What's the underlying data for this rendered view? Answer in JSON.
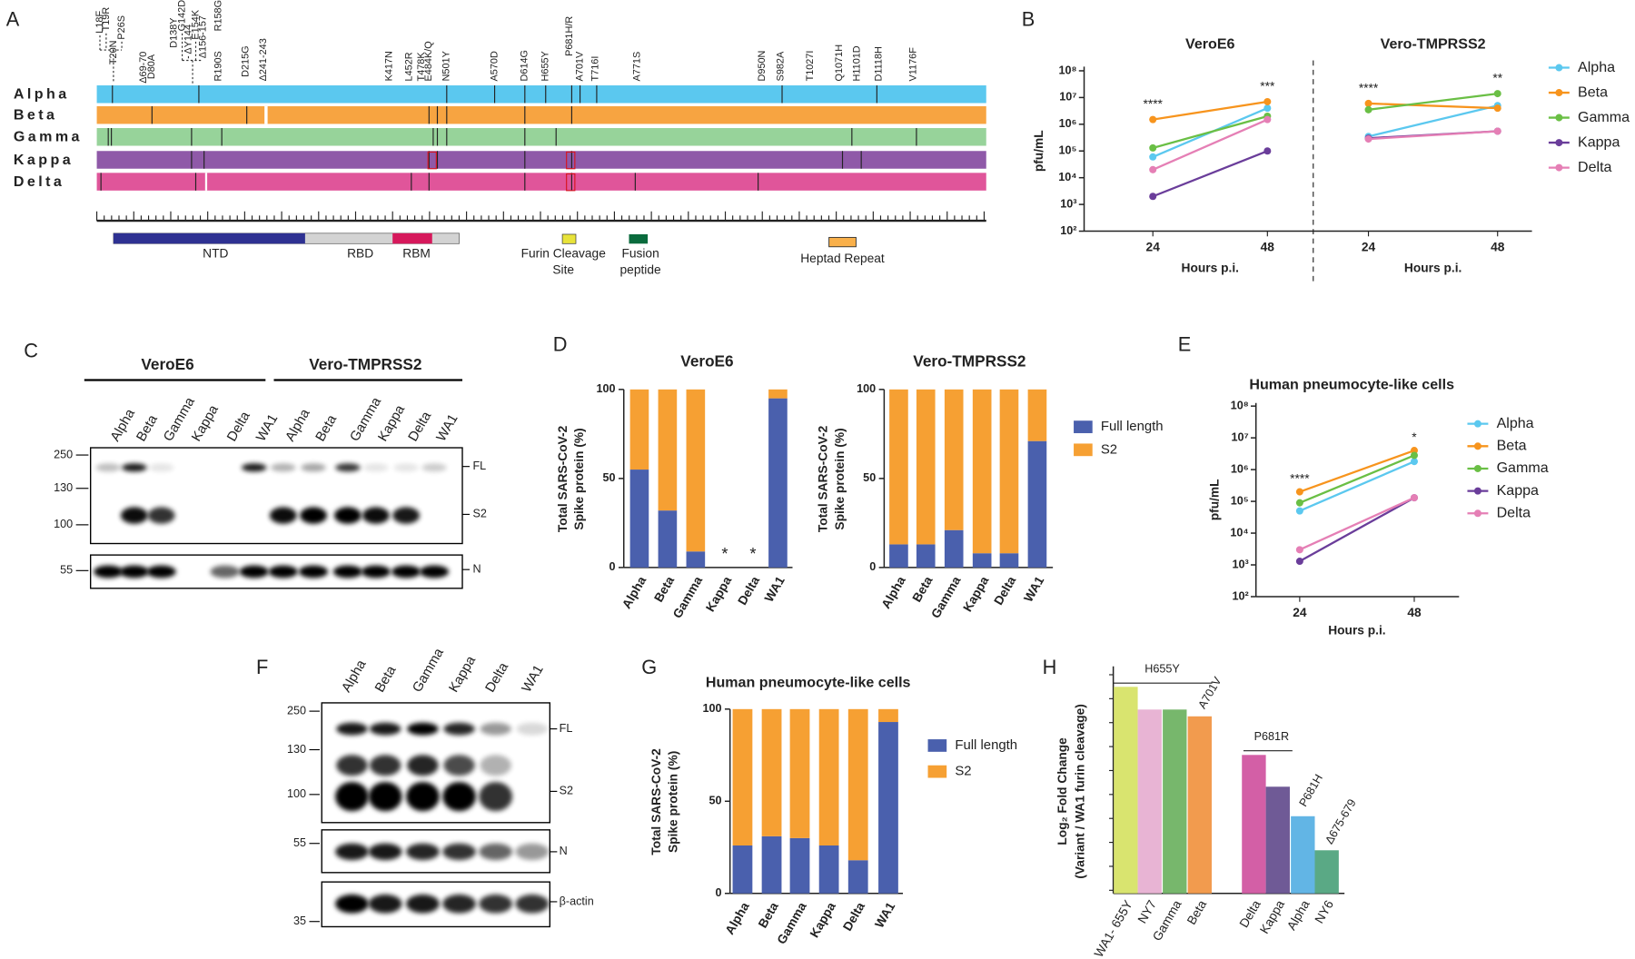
{
  "panel_labels": [
    "A",
    "B",
    "C",
    "D",
    "E",
    "F",
    "G",
    "H"
  ],
  "panel_a": {
    "variants": [
      "Alpha",
      "Beta",
      "Gamma",
      "Kappa",
      "Delta"
    ],
    "mutations": [
      {
        "text": "L18F"
      },
      {
        "text": "T19R"
      },
      {
        "text": "T20N"
      },
      {
        "text": "P26S"
      },
      {
        "text": "Δ69-70",
        "color": "#8a8a8a"
      },
      {
        "text": "D80A"
      },
      {
        "text": "D138Y"
      },
      {
        "text": "G142D"
      },
      {
        "text": "ΔY144",
        "color": "#8a8a8a"
      },
      {
        "text": "E154K"
      },
      {
        "text": "Δ156-157",
        "color": "#8a8a8a"
      },
      {
        "text": "R158G"
      },
      {
        "text": "R190S"
      },
      {
        "text": "D215G"
      },
      {
        "text": "Δ241-243",
        "color": "#8a8a8a"
      },
      {
        "text": "K417N"
      },
      {
        "text": "L452R"
      },
      {
        "text": "T478K"
      },
      {
        "text": "E484K/Q"
      },
      {
        "text": "N501Y"
      },
      {
        "text": "A570D"
      },
      {
        "text": "D614G"
      },
      {
        "text": "H655Y"
      },
      {
        "text": "P681H/R"
      },
      {
        "text": "A701V"
      },
      {
        "text": "T716I"
      },
      {
        "text": "A771S"
      },
      {
        "text": "D950N"
      },
      {
        "text": "S982A"
      },
      {
        "text": "T1027I"
      },
      {
        "text": "Q1071H"
      },
      {
        "text": "H1101D"
      },
      {
        "text": "D1118H"
      },
      {
        "text": "V1176F"
      }
    ],
    "domains": {
      "ntd": "NTD",
      "rbd": "RBD",
      "rbm": "RBM",
      "furin": [
        "Furin Cleavage",
        "Site"
      ],
      "fusion": [
        "Fusion",
        "peptide"
      ],
      "heptad": "Heptad Repeat"
    }
  },
  "blots": {
    "c": {
      "groups": [
        "VeroE6",
        "Vero-TMPRSS2"
      ],
      "lanes": [
        "Alpha",
        "Beta",
        "Gamma",
        "Kappa",
        "Delta",
        "WA1",
        "Alpha",
        "Beta",
        "Gamma",
        "Kappa",
        "Delta",
        "WA1"
      ],
      "markers": [
        "250",
        "130",
        "100",
        "55"
      ],
      "bands": [
        "FL",
        "S2",
        "N"
      ]
    },
    "f": {
      "lanes": [
        "Alpha",
        "Beta",
        "Gamma",
        "Kappa",
        "Delta",
        "WA1"
      ],
      "markers": [
        "250",
        "130",
        "100",
        "55",
        "35"
      ],
      "bands": [
        "FL",
        "S2",
        "N",
        "β-actin"
      ]
    }
  },
  "chart_data": [
    {
      "type": "line-panels",
      "log_y": true,
      "y_label": "pfu/mL",
      "ylim": [
        100,
        100000000
      ],
      "yticks": [
        {
          "value": 100,
          "label": "10²"
        },
        {
          "value": 1000,
          "label": "10³"
        },
        {
          "value": 10000,
          "label": "10⁴"
        },
        {
          "value": 100000,
          "label": "10⁵"
        },
        {
          "value": 1000000,
          "label": "10⁶"
        },
        {
          "value": 10000000,
          "label": "10⁷"
        },
        {
          "value": 100000000,
          "label": "10⁸"
        }
      ],
      "legend": [
        {
          "name": "Alpha",
          "color": "#5bc8ef"
        },
        {
          "name": "Beta",
          "color": "#f7941d"
        },
        {
          "name": "Gamma",
          "color": "#6abf45"
        },
        {
          "name": "Kappa",
          "color": "#6a3d9a"
        },
        {
          "name": "Delta",
          "color": "#e57fb5"
        }
      ],
      "subplots": [
        {
          "title": "VeroE6",
          "x_label": "Hours p.i.",
          "categories": [
            "24",
            "48"
          ],
          "annotations": [
            "****",
            "***"
          ],
          "series": [
            {
              "values": [
                60000,
                4000000
              ]
            },
            {
              "values": [
                1500000,
                7000000
              ]
            },
            {
              "values": [
                130000,
                2000000
              ]
            },
            {
              "values": [
                2000,
                100000
              ]
            },
            {
              "values": [
                20000,
                1500000
              ]
            }
          ]
        },
        {
          "title": "Vero-TMPRSS2",
          "x_label": "Hours p.i.",
          "categories": [
            "24",
            "48"
          ],
          "annotations": [
            "****",
            "**"
          ],
          "series": [
            {
              "values": [
                350000,
                5000000
              ]
            },
            {
              "values": [
                6000000,
                4000000
              ]
            },
            {
              "values": [
                3500000,
                14000000
              ]
            },
            {
              "values": [
                300000,
                550000
              ]
            },
            {
              "values": [
                280000,
                550000
              ]
            }
          ]
        }
      ]
    },
    {
      "type": "stacked-bar-panels",
      "legend": [
        {
          "name": "Full length",
          "color": "#4a60ad"
        },
        {
          "name": "S2",
          "color": "#f6a033"
        }
      ],
      "subplots": [
        {
          "title": "VeroE6",
          "y_label": [
            "Total SARS-CoV-2",
            "Spike protein (%)"
          ],
          "ylim": [
            0,
            100
          ],
          "yticks": [
            0,
            50,
            100
          ],
          "categories": [
            "Alpha",
            "Beta",
            "Gamma",
            "Kappa",
            "Delta",
            "WA1"
          ],
          "annotations": [
            "*",
            "*"
          ],
          "series": [
            {
              "values": [
                55,
                32,
                9,
                null,
                null,
                95
              ]
            },
            {
              "values": [
                45,
                68,
                91,
                null,
                null,
                5
              ]
            }
          ]
        },
        {
          "title": "Vero-TMPRSS2",
          "y_label": [
            "Total SARS-CoV-2",
            "Spike protein (%)"
          ],
          "ylim": [
            0,
            100
          ],
          "yticks": [
            0,
            50,
            100
          ],
          "categories": [
            "Alpha",
            "Beta",
            "Gamma",
            "Kappa",
            "Delta",
            "WA1"
          ],
          "series": [
            {
              "values": [
                13,
                13,
                21,
                8,
                8,
                71
              ]
            },
            {
              "values": [
                87,
                87,
                79,
                92,
                92,
                29
              ]
            }
          ]
        }
      ]
    },
    {
      "type": "line",
      "log_y": true,
      "title": "Human pneumocyte-like cells",
      "y_label": "pfu/mL",
      "x_label": "Hours p.i.",
      "categories": [
        "24",
        "48"
      ],
      "annotations": [
        "****",
        "*"
      ],
      "ylim": [
        100,
        100000000
      ],
      "yticks": [
        {
          "value": 100,
          "label": "10²"
        },
        {
          "value": 1000,
          "label": "10³"
        },
        {
          "value": 10000,
          "label": "10⁴"
        },
        {
          "value": 100000,
          "label": "10⁵"
        },
        {
          "value": 1000000,
          "label": "10⁶"
        },
        {
          "value": 10000000,
          "label": "10⁷"
        },
        {
          "value": 100000000,
          "label": "10⁸"
        }
      ],
      "series": [
        {
          "name": "Alpha",
          "color": "#5bc8ef",
          "values": [
            50000,
            1800000
          ]
        },
        {
          "name": "Beta",
          "color": "#f7941d",
          "values": [
            200000,
            4000000
          ]
        },
        {
          "name": "Gamma",
          "color": "#6abf45",
          "values": [
            90000,
            2800000
          ]
        },
        {
          "name": "Kappa",
          "color": "#6a3d9a",
          "values": [
            1300,
            130000
          ]
        },
        {
          "name": "Delta",
          "color": "#e57fb5",
          "values": [
            3000,
            130000
          ]
        }
      ]
    },
    {
      "type": "stacked-bar",
      "title": "Human pneumocyte-like cells",
      "y_label": [
        "Total SARS-CoV-2",
        "Spike protein (%)"
      ],
      "ylim": [
        0,
        100
      ],
      "yticks": [
        0,
        50,
        100
      ],
      "categories": [
        "Alpha",
        "Beta",
        "Gamma",
        "Kappa",
        "Delta",
        "WA1"
      ],
      "series": [
        {
          "name": "Full length",
          "color": "#4a60ad",
          "values": [
            26,
            31,
            30,
            26,
            18,
            93
          ]
        },
        {
          "name": "S2",
          "color": "#f6a033",
          "values": [
            74,
            69,
            70,
            74,
            82,
            7
          ]
        }
      ]
    },
    {
      "type": "bar",
      "y_label": [
        "Log₂ Fold Change",
        "(Variant / WA1 furin cleavage)"
      ],
      "ylim": [
        0,
        1
      ],
      "categories": [
        "WA1- 655Y",
        "NY7",
        "Gamma",
        "Beta",
        "Delta",
        "Kappa",
        "Alpha",
        "NY6"
      ],
      "values": [
        0.91,
        0.81,
        0.81,
        0.78,
        0.61,
        0.47,
        0.34,
        0.19
      ],
      "colors": [
        "#d9e46f",
        "#e8b4d4",
        "#77b76c",
        "#f29b4e",
        "#d35fa6",
        "#6f5a96",
        "#62b5e5",
        "#5aa985"
      ],
      "annotations": [
        "H655Y",
        "A701V",
        "P681R",
        "P681H",
        "Δ675-679"
      ]
    }
  ]
}
